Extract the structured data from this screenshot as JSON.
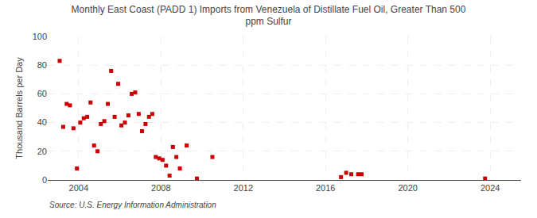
{
  "chart_data": {
    "type": "scatter",
    "title": "Monthly East Coast (PADD 1) Imports from Venezuela of Distillate Fuel Oil, Greater Than 500\nppm Sulfur",
    "ylabel": "Thousand Barrels per Day",
    "annotations": [
      "Source: U.S. Energy Information Administration"
    ],
    "x": [
      2003.08,
      2003.25,
      2003.42,
      2003.58,
      2003.75,
      2003.92,
      2004.08,
      2004.25,
      2004.42,
      2004.58,
      2004.75,
      2004.92,
      2005.08,
      2005.25,
      2005.42,
      2005.58,
      2005.75,
      2005.92,
      2006.08,
      2006.25,
      2006.42,
      2006.58,
      2006.75,
      2006.92,
      2007.08,
      2007.25,
      2007.42,
      2007.58,
      2007.75,
      2007.92,
      2008.08,
      2008.25,
      2008.42,
      2008.58,
      2008.75,
      2008.92,
      2009.25,
      2009.75,
      2010.5,
      2016.75,
      2017.0,
      2017.25,
      2017.58,
      2017.75,
      2023.75
    ],
    "values": [
      83,
      37,
      53,
      52,
      36,
      8,
      40,
      43,
      44,
      54,
      24,
      20,
      39,
      41,
      53,
      76,
      44,
      67,
      38,
      40,
      45,
      60,
      61,
      46,
      34,
      39,
      44,
      46,
      16,
      15,
      14,
      10,
      3,
      23,
      16,
      8,
      24,
      1,
      16,
      2,
      5,
      4,
      4,
      4,
      1
    ],
    "color": "#cc0000",
    "marker": "square",
    "xlim": [
      2002.5,
      2025.5
    ],
    "ylim": [
      0,
      100
    ],
    "xticks": [
      2004,
      2008,
      2012,
      2016,
      2020,
      2024
    ],
    "yticks": [
      0,
      20,
      40,
      60,
      80,
      100
    ],
    "grid": true
  }
}
